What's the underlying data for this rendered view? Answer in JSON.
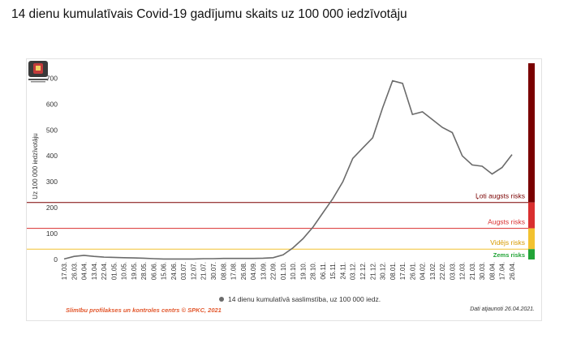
{
  "page": {
    "title": "14 dienu kumulatīvais Covid-19 gadījumu skaits uz 100 000 iedzīvotāju"
  },
  "colors": {
    "line": "#6b6b6b",
    "very_high": "#7a0000",
    "high": "#d92f2f",
    "medium": "#f2c230",
    "low": "#22a437"
  },
  "footer": {
    "source": "Slimību profilakses un kontroles centrs © SPKC, 2021",
    "updated": "Dati atjaunoti 26.04.2021."
  },
  "chart_data": {
    "type": "line",
    "title": "",
    "xlabel": "",
    "ylabel": "Uz 100 000 iedzīvotāju",
    "ylim": [
      0,
      720
    ],
    "yticks": [
      0,
      100,
      200,
      300,
      400,
      500,
      600,
      700
    ],
    "grid": false,
    "legend_position": "bottom",
    "categories": [
      "17.03.",
      "26.03.",
      "04.04.",
      "13.04.",
      "22.04.",
      "01.05.",
      "10.05.",
      "19.05.",
      "28.05.",
      "06.06.",
      "15.06.",
      "24.06.",
      "03.07.",
      "12.07.",
      "21.07.",
      "30.07.",
      "08.08.",
      "17.08.",
      "26.08.",
      "04.09.",
      "13.09.",
      "22.09.",
      "01.10.",
      "10.10.",
      "19.10.",
      "28.10.",
      "06.11.",
      "15.11.",
      "24.11.",
      "03.12.",
      "12.12.",
      "21.12.",
      "30.12.",
      "08.01.",
      "17.01.",
      "26.01.",
      "04.02.",
      "13.02.",
      "22.02.",
      "03.03.",
      "12.03.",
      "21.03.",
      "30.03.",
      "08.04.",
      "17.04.",
      "26.04."
    ],
    "series": [
      {
        "name": "14 dienu kumulatīvā saslimstība, uz 100 000 iedz.",
        "values": [
          2,
          12,
          16,
          12,
          9,
          8,
          7,
          6,
          5,
          3,
          2,
          2,
          2,
          2,
          3,
          3,
          4,
          4,
          4,
          4,
          5,
          7,
          18,
          45,
          80,
          125,
          180,
          235,
          300,
          390,
          430,
          470,
          585,
          690,
          680,
          560,
          570,
          540,
          510,
          490,
          400,
          365,
          360,
          330,
          355,
          405
        ]
      }
    ],
    "thresholds": [
      {
        "label": "Ļoti augsts risks",
        "value": 220,
        "band": [
          220,
          720
        ]
      },
      {
        "label": "Augsts risks",
        "value": 120,
        "band": [
          120,
          220
        ]
      },
      {
        "label": "Vidējs risks",
        "value": 40,
        "band": [
          40,
          120
        ]
      },
      {
        "label": "Zems risks",
        "value": 0,
        "band": [
          0,
          40
        ]
      }
    ]
  }
}
